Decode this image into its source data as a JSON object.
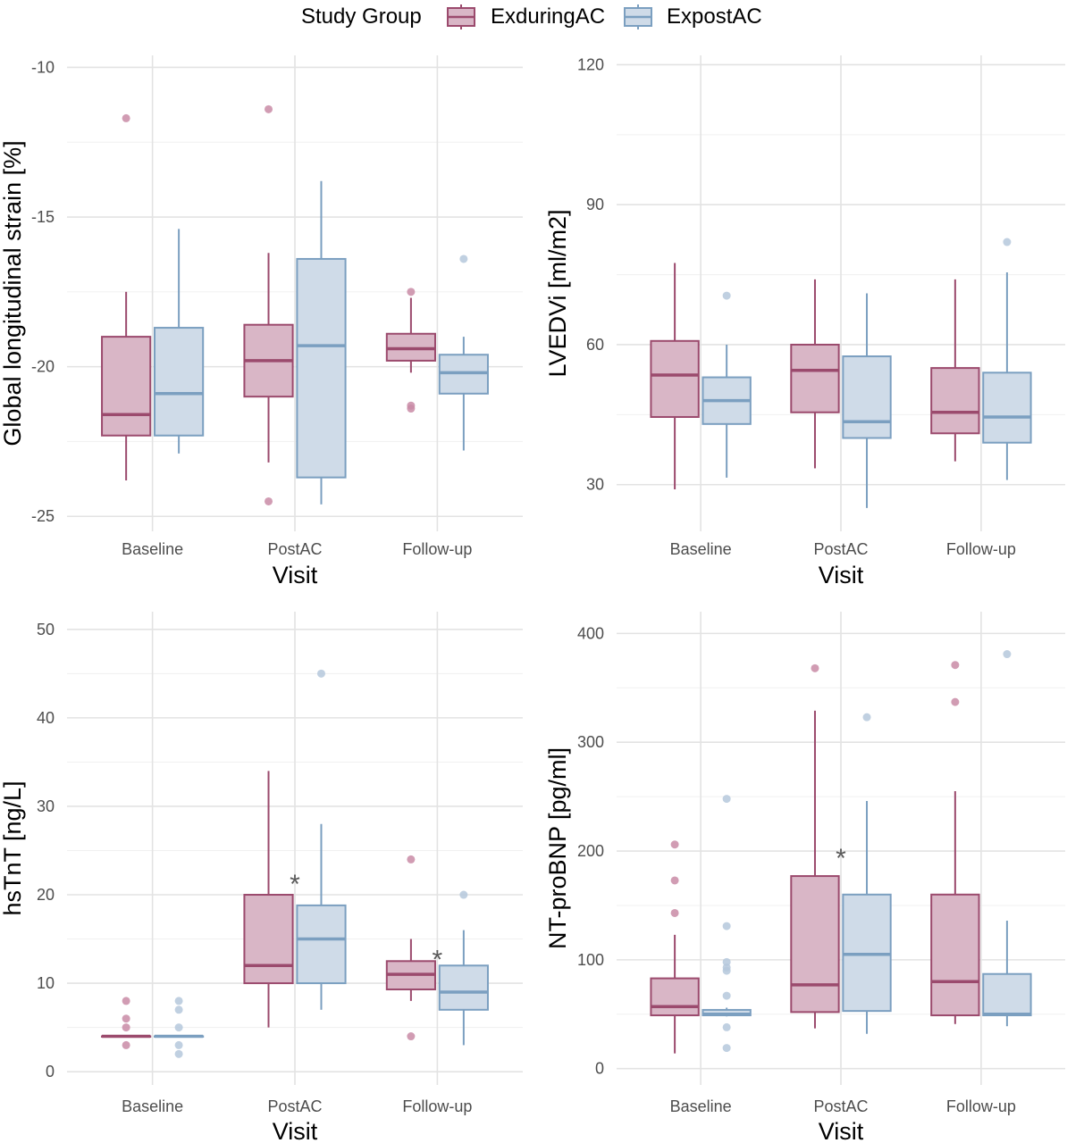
{
  "legend": {
    "title": "Study Group",
    "groups": [
      {
        "name": "ExduringAC",
        "fill": "#d9b6c6",
        "stroke": "#9b4a6d",
        "point": "#c98ba6"
      },
      {
        "name": "ExpostAC",
        "fill": "#cfdbe8",
        "stroke": "#7b9fc0",
        "point": "#b5c8dc"
      }
    ]
  },
  "chart_data": [
    {
      "type": "boxplot",
      "ylabel": "Global longitudinal strain [%]",
      "xlabel": "Visit",
      "categories": [
        "Baseline",
        "PostAC",
        "Follow-up"
      ],
      "ylim": [
        -25.5,
        -9.6
      ],
      "yticks": [
        -25,
        -20,
        -15,
        -10
      ],
      "yticklabels": [
        "-25",
        "-20",
        "-15",
        "-10"
      ],
      "series": [
        {
          "name": "ExduringAC",
          "boxes": [
            {
              "q1": -22.3,
              "median": -21.6,
              "q3": -19.0,
              "lower": -23.8,
              "upper": -17.5,
              "outliers": [
                -11.7
              ]
            },
            {
              "q1": -21.0,
              "median": -19.8,
              "q3": -18.6,
              "lower": -23.2,
              "upper": -16.2,
              "outliers": [
                -11.4,
                -24.5
              ]
            },
            {
              "q1": -19.8,
              "median": -19.4,
              "q3": -18.9,
              "lower": -20.2,
              "upper": -17.7,
              "outliers": [
                -17.5,
                -21.3,
                -21.4
              ]
            }
          ]
        },
        {
          "name": "ExpostAC",
          "boxes": [
            {
              "q1": -22.3,
              "median": -20.9,
              "q3": -18.7,
              "lower": -22.9,
              "upper": -15.4,
              "outliers": []
            },
            {
              "q1": -23.7,
              "median": -19.3,
              "q3": -16.4,
              "lower": -24.6,
              "upper": -13.8,
              "outliers": []
            },
            {
              "q1": -20.9,
              "median": -20.2,
              "q3": -19.6,
              "lower": -22.8,
              "upper": -19.0,
              "outliers": [
                -16.4
              ]
            }
          ]
        }
      ],
      "annotations": []
    },
    {
      "type": "boxplot",
      "ylabel": "LVEDVi [ml/m2]",
      "xlabel": "Visit",
      "categories": [
        "Baseline",
        "PostAC",
        "Follow-up"
      ],
      "ylim": [
        20,
        122
      ],
      "yticks": [
        30,
        60,
        90,
        120
      ],
      "yticklabels": [
        "30",
        "60",
        "90",
        "120"
      ],
      "series": [
        {
          "name": "ExduringAC",
          "boxes": [
            {
              "q1": 44.5,
              "median": 53.5,
              "q3": 60.8,
              "lower": 29.0,
              "upper": 77.5,
              "outliers": []
            },
            {
              "q1": 45.5,
              "median": 54.5,
              "q3": 60.0,
              "lower": 33.5,
              "upper": 74.0,
              "outliers": []
            },
            {
              "q1": 41.0,
              "median": 45.5,
              "q3": 55.0,
              "lower": 35.0,
              "upper": 74.0,
              "outliers": []
            }
          ]
        },
        {
          "name": "ExpostAC",
          "boxes": [
            {
              "q1": 43.0,
              "median": 48.0,
              "q3": 53.0,
              "lower": 31.5,
              "upper": 60.0,
              "outliers": [
                70.5
              ]
            },
            {
              "q1": 40.0,
              "median": 43.5,
              "q3": 57.5,
              "lower": 25.0,
              "upper": 71.0,
              "outliers": []
            },
            {
              "q1": 39.0,
              "median": 44.5,
              "q3": 54.0,
              "lower": 31.0,
              "upper": 75.5,
              "outliers": [
                82.0
              ]
            }
          ]
        }
      ],
      "annotations": []
    },
    {
      "type": "boxplot",
      "ylabel": "hsTnT [ng/L]",
      "xlabel": "Visit",
      "categories": [
        "Baseline",
        "PostAC",
        "Follow-up"
      ],
      "ylim": [
        -1.5,
        52
      ],
      "yticks": [
        0,
        10,
        20,
        30,
        40,
        50
      ],
      "yticklabels": [
        "0",
        "10",
        "20",
        "30",
        "40",
        "50"
      ],
      "series": [
        {
          "name": "ExduringAC",
          "boxes": [
            {
              "q1": 4,
              "median": 4,
              "q3": 4,
              "lower": 4,
              "upper": 4,
              "outliers": [
                3,
                5,
                6,
                8
              ]
            },
            {
              "q1": 10,
              "median": 12,
              "q3": 20,
              "lower": 5,
              "upper": 34,
              "outliers": []
            },
            {
              "q1": 9.3,
              "median": 11,
              "q3": 12.5,
              "lower": 8,
              "upper": 15,
              "outliers": [
                24,
                4
              ]
            }
          ]
        },
        {
          "name": "ExpostAC",
          "boxes": [
            {
              "q1": 4,
              "median": 4,
              "q3": 4,
              "lower": 4,
              "upper": 4,
              "outliers": [
                2,
                3,
                5,
                7,
                8
              ]
            },
            {
              "q1": 10,
              "median": 15,
              "q3": 18.8,
              "lower": 7,
              "upper": 28,
              "outliers": [
                45
              ]
            },
            {
              "q1": 7,
              "median": 9,
              "q3": 12,
              "lower": 3,
              "upper": 16,
              "outliers": [
                20
              ]
            }
          ]
        }
      ],
      "annotations": [
        {
          "text": "*",
          "category": 1,
          "y": 22
        },
        {
          "text": "*",
          "category": 2,
          "y": 13.5
        }
      ]
    },
    {
      "type": "boxplot",
      "ylabel": "NT-proBNP [pg/ml]",
      "xlabel": "Visit",
      "categories": [
        "Baseline",
        "PostAC",
        "Follow-up"
      ],
      "ylim": [
        -15,
        420
      ],
      "yticks": [
        0,
        100,
        200,
        300,
        400
      ],
      "yticklabels": [
        "0",
        "100",
        "200",
        "300",
        "400"
      ],
      "series": [
        {
          "name": "ExduringAC",
          "boxes": [
            {
              "q1": 49,
              "median": 57,
              "q3": 83,
              "lower": 14,
              "upper": 123,
              "outliers": [
                143,
                173,
                206
              ]
            },
            {
              "q1": 52,
              "median": 77,
              "q3": 177,
              "lower": 37,
              "upper": 329,
              "outliers": [
                368
              ]
            },
            {
              "q1": 49,
              "median": 80,
              "q3": 160,
              "lower": 41,
              "upper": 255,
              "outliers": [
                337,
                371
              ]
            }
          ]
        },
        {
          "name": "ExpostAC",
          "boxes": [
            {
              "q1": 49,
              "median": 50,
              "q3": 54,
              "lower": 48,
              "upper": 56,
              "outliers": [
                19,
                38,
                67,
                90,
                93,
                98,
                131,
                248
              ]
            },
            {
              "q1": 53,
              "median": 105,
              "q3": 160,
              "lower": 32,
              "upper": 246,
              "outliers": [
                323
              ]
            },
            {
              "q1": 49,
              "median": 50,
              "q3": 87,
              "lower": 39,
              "upper": 136,
              "outliers": [
                381
              ]
            }
          ]
        }
      ],
      "annotations": [
        {
          "text": "*",
          "category": 1,
          "y": 200
        }
      ]
    }
  ]
}
